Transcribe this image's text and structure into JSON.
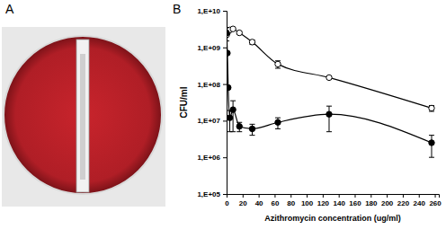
{
  "panel_labels": [
    "A",
    "B"
  ],
  "chart_data": {
    "type": "line",
    "x_label": "Azithromycin concentration (ug/ml)",
    "y_label": "CFU/ml",
    "x": [
      0,
      1,
      2,
      4,
      8,
      16,
      32,
      64,
      128,
      256
    ],
    "series": [
      {
        "color": "#000000",
        "marker": "circle-open",
        "values": [
          2200000000,
          2500000000,
          2800000000,
          3000000000,
          3200000000,
          2500000000,
          1400000000,
          350000000,
          150000000,
          22000000
        ],
        "errors": [
          null,
          null,
          null,
          null,
          null,
          200000000,
          200000000,
          80000000,
          15000000,
          4000000
        ]
      },
      {
        "color": "#000000",
        "marker": "circle",
        "values": [
          2500000000,
          700000000,
          80000000,
          12000000,
          20000000,
          7000000,
          6000000,
          9000000,
          15000000,
          2500000
        ],
        "errors": [
          1000000000,
          null,
          null,
          7000000,
          15000000,
          2000000,
          2000000,
          3000000,
          10000000,
          1500000
        ]
      }
    ],
    "xlim": [
      0,
      265
    ],
    "xticks": [
      0,
      20,
      40,
      60,
      80,
      100,
      120,
      140,
      160,
      180,
      200,
      220,
      240,
      260
    ],
    "ylim": [
      100000,
      10000000000
    ],
    "yticks": [
      {
        "value": 100000,
        "label": "1,E+05"
      },
      {
        "value": 1000000,
        "label": "1,E+06"
      },
      {
        "value": 10000000,
        "label": "1,E+07"
      },
      {
        "value": 100000000,
        "label": "1,E+08"
      },
      {
        "value": 1000000000,
        "label": "1,E+09"
      },
      {
        "value": 10000000000,
        "label": "1,E+10"
      }
    ],
    "log": "y",
    "grid": false
  }
}
